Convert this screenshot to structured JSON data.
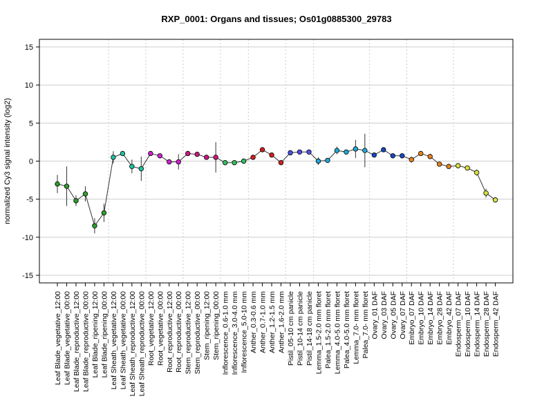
{
  "chart_data": {
    "type": "line",
    "title": "RXP_0001: Organs and tissues; Os01g0885300_29783",
    "ylabel": "normalized Cy3 signal intensity (log2)",
    "xlabel": "",
    "ylim": [
      -16,
      16
    ],
    "yticks": [
      -15,
      -10,
      -5,
      0,
      5,
      10,
      15
    ],
    "grid": "horizontal at y ticks; dotted vertical separators between tissue groups",
    "categories": [
      "Leaf Blade_vegetative_12:00",
      "Leaf Blade_vegetative_00:00",
      "Leaf Blade_reproductive_12:00",
      "Leaf Blade_reproductive_00:00",
      "Leaf Blade_ripening_12:00",
      "Leaf Blade_ripening_00:00",
      "Leaf Sheath_vegetative_12:00",
      "Leaf Sheath_vegetative_00:00",
      "Leaf Sheath_reproductive_12:00",
      "Leaf Sheath_reproductive_00:00",
      "Root_vegetative_12:00",
      "Root_vegetative_00:00",
      "Root_reproductive_12:00",
      "Root_reproductive_00:00",
      "Stem_reproductive_12:00",
      "Stem_reproductive_00:00",
      "Stem_ripening_12:00",
      "Stem_ripening_00:00",
      "Inflorescence_0.6-1.0 mm",
      "Inflorescence_3.0-4.0 mm",
      "Inflorescence_5.0-10 mm",
      "Anther_0.3-0.6 mm",
      "Anther_0.7-1.0 mm",
      "Anther_1.2-1.5 mm",
      "Anther_1.6-2.0 mm",
      "Pistil_05-10 cm panicle",
      "Pistil_10-14 cm panicle",
      "Pistil_14-18 cm panicle",
      "Lemma_1.5-2.0 mm floret",
      "Palea_1.5-2.0 mm floret",
      "Lemma_4.0-5.0 mm floret",
      "Palea_4.0-5.0 mm floret",
      "Lemma_7.0- mm floret",
      "Palea_7.0- mm floret",
      "Ovary_01 DAF",
      "Ovary_03 DAF",
      "Ovary_05 DAF",
      "Ovary_07 DAF",
      "Embryo_07 DAF",
      "Embryo_10 DAF",
      "Embryo_14 DAF",
      "Embryo_28 DAF",
      "Embryo_42 DAF",
      "Endosperm_07 DAF",
      "Endosperm_10 DAF",
      "Endosperm_14 DAF",
      "Endosperm_28 DAF",
      "Endosperm_42 DAF"
    ],
    "values": [
      -3.0,
      -3.3,
      -5.2,
      -4.3,
      -8.5,
      -6.8,
      0.5,
      1.0,
      -0.7,
      -1.0,
      1.0,
      0.7,
      -0.1,
      -0.1,
      1.0,
      0.9,
      0.5,
      0.5,
      -0.2,
      -0.2,
      0.0,
      0.5,
      1.5,
      0.8,
      -0.2,
      1.1,
      1.2,
      1.2,
      0.0,
      0.1,
      1.4,
      1.2,
      1.6,
      1.4,
      0.8,
      1.5,
      0.7,
      0.7,
      0.2,
      1.0,
      0.6,
      -0.4,
      -0.7,
      -0.6,
      -0.9,
      -1.5,
      -4.2,
      -5.1
    ],
    "errors": [
      1.2,
      2.6,
      0.7,
      1.0,
      1.0,
      1.2,
      0.8,
      0.3,
      0.9,
      1.6,
      0.2,
      0.2,
      0.2,
      1.0,
      0.2,
      0.2,
      0.3,
      2.0,
      0.2,
      0.2,
      0.2,
      0.2,
      0.2,
      0.2,
      0.2,
      0.2,
      0.2,
      0.2,
      0.5,
      0.3,
      0.5,
      0.3,
      1.2,
      2.2,
      0.2,
      0.2,
      0.2,
      0.2,
      0.4,
      0.2,
      0.2,
      0.2,
      0.2,
      0.2,
      0.2,
      0.4,
      0.6,
      0.2
    ],
    "colors": [
      "#2e9e2e",
      "#2e9e2e",
      "#2e9e2e",
      "#2e9e2e",
      "#2e9e2e",
      "#2e9e2e",
      "#20c0a0",
      "#20c0a0",
      "#20c0a0",
      "#20c0a0",
      "#d020d0",
      "#d020d0",
      "#d020d0",
      "#d020d0",
      "#d01880",
      "#d01880",
      "#d01880",
      "#d01880",
      "#30c060",
      "#30c060",
      "#30c060",
      "#d02020",
      "#d02020",
      "#d02020",
      "#d02020",
      "#5050e8",
      "#5050e8",
      "#5050e8",
      "#20a8d8",
      "#20a8d8",
      "#20a8d8",
      "#20a8d8",
      "#20a8d8",
      "#20a8d8",
      "#1848c0",
      "#1848c0",
      "#1848c0",
      "#1848c0",
      "#e88020",
      "#e88020",
      "#e88020",
      "#e88020",
      "#e88020",
      "#d8e040",
      "#d8e040",
      "#d8e040",
      "#d8e040",
      "#d8e040"
    ],
    "group_boundaries_after_index": [
      5,
      9,
      13,
      17,
      20,
      24,
      27,
      33,
      37,
      42
    ]
  }
}
